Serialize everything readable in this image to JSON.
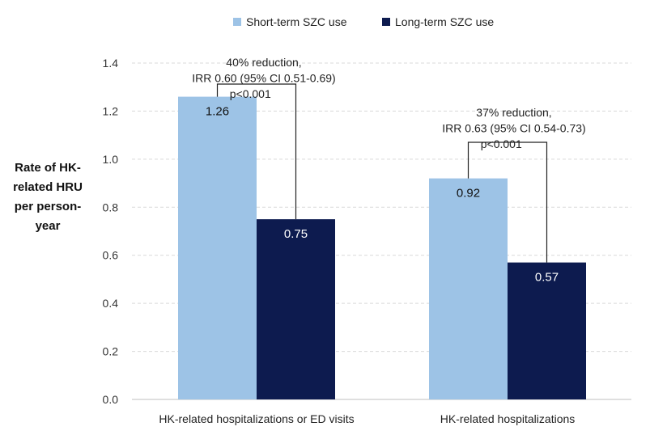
{
  "chart_data": {
    "type": "bar",
    "ylabel_lines": [
      "Rate of HK-",
      "related HRU",
      "per person-",
      "year"
    ],
    "categories": [
      "HK-related hospitalizations or ED visits",
      "HK-related hospitalizations"
    ],
    "series": [
      {
        "name": "Short-term SZC use",
        "color": "#9dc3e6",
        "values": [
          1.26,
          0.92
        ],
        "labels": [
          "1.26",
          "0.92"
        ]
      },
      {
        "name": "Long-term SZC use",
        "color": "#0d1b4f",
        "values": [
          0.75,
          0.57
        ],
        "labels": [
          "0.75",
          "0.57"
        ]
      }
    ],
    "ylim": [
      0,
      1.4
    ],
    "yticks": [
      "0.0",
      "0.2",
      "0.4",
      "0.6",
      "0.8",
      "1.0",
      "1.2",
      "1.4"
    ],
    "grid": true,
    "legend": "top",
    "annotations": [
      {
        "lines": [
          "40% reduction,",
          "IRR 0.60 (95% CI 0.51-0.69)",
          "p<0.001"
        ]
      },
      {
        "lines": [
          "37% reduction,",
          "IRR 0.63 (95% CI 0.54-0.73)",
          "p<0.001"
        ]
      }
    ]
  }
}
